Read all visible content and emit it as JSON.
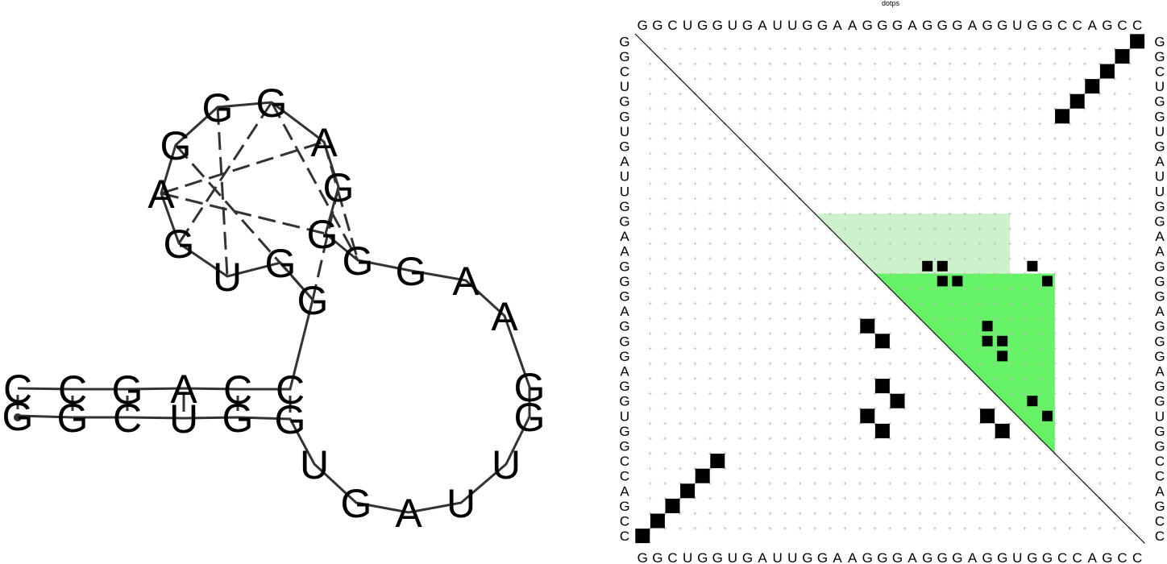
{
  "title": "dotps",
  "sequence": "GGCUGGUGAUUGGAAGGGAGGGAGGUGGCCAGCC",
  "structure": {
    "stem_bottom": [
      "G",
      "G",
      "C",
      "U",
      "G",
      "G"
    ],
    "loop_bottom": [
      "U",
      "G",
      "A",
      "U",
      "U"
    ],
    "loop_right": [
      "G",
      "G",
      "A",
      "A",
      "G",
      "G"
    ],
    "g_quadruplex": [
      "G",
      "A",
      "G",
      "G",
      "G",
      "A",
      "G",
      "U",
      "G",
      "G"
    ],
    "stem_top": [
      "C",
      "C",
      "G",
      "A",
      "C",
      "C"
    ]
  },
  "dot_plot": {
    "size": 34,
    "upper_pairs": [
      [
        1,
        34
      ],
      [
        2,
        33
      ],
      [
        3,
        32
      ],
      [
        4,
        31
      ],
      [
        5,
        30
      ],
      [
        6,
        29
      ]
    ],
    "lower_pairs": [
      [
        6,
        29
      ],
      [
        5,
        30
      ],
      [
        4,
        31
      ],
      [
        3,
        32
      ],
      [
        2,
        33
      ],
      [
        1,
        34
      ]
    ],
    "quadruplex_dots": [
      [
        16,
        20
      ],
      [
        16,
        21
      ],
      [
        17,
        21
      ],
      [
        17,
        22
      ],
      [
        16,
        27
      ],
      [
        17,
        28
      ],
      [
        20,
        24
      ],
      [
        21,
        24
      ],
      [
        21,
        25
      ],
      [
        22,
        25
      ],
      [
        25,
        27
      ],
      [
        26,
        28
      ]
    ],
    "lower_dots": [
      [
        20,
        16
      ],
      [
        21,
        17
      ],
      [
        24,
        17
      ],
      [
        25,
        18
      ],
      [
        26,
        16
      ],
      [
        27,
        17
      ],
      [
        26,
        24
      ],
      [
        27,
        25
      ]
    ],
    "shade_light_color": "#ccf2cc",
    "shade_dark_color": "#66f266"
  }
}
